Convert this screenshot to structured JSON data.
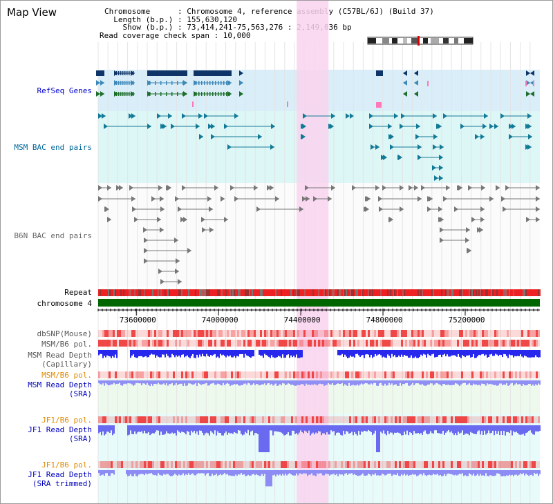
{
  "page": {
    "title": "Map View",
    "info": {
      "chromosome": "Chromosome      : Chromosome 4, reference assembly (C57BL/6J) (Build 37)",
      "length": "  Length (b.p.) : 155,630,120",
      "show": "    Show (b.p.) : 73,414,241-75,563,276 : 2,149,036 bp",
      "coverage": "Read coverage check span : 10,000"
    }
  },
  "tracks": {
    "refseq": {
      "label": "RefSeq Genes",
      "color": "#0000cc"
    },
    "msm_bac": {
      "label": "MSM BAC end pairs",
      "color": "#006699"
    },
    "b6n_bac": {
      "label": "B6N BAC end pairs",
      "color": "#666666"
    },
    "repeat": {
      "label": "Repeat"
    },
    "chromosome": {
      "label": "chromosome 4"
    },
    "dbsnp": {
      "label": "dbSNP(Mouse)"
    },
    "msm_b6_pol": {
      "label": "MSM/B6 pol."
    },
    "msm_depth_cap": {
      "label": "MSM Read Depth",
      "label2": "(Capillary)"
    },
    "msm_b6_pol2": {
      "label": "MSM/B6 pol."
    },
    "msm_depth_sra": {
      "label": "MSM Read Depth",
      "label2": "(SRA)"
    },
    "jf1_b6_pol": {
      "label": "JF1/B6 pol."
    },
    "jf1_depth_sra": {
      "label": "JF1 Read Depth",
      "label2": "(SRA)"
    },
    "jf1_b6_pol2": {
      "label": "JF1/B6 pol."
    },
    "jf1_depth_trim": {
      "label": "JF1 Read Depth",
      "label2": "(SRA trimmed)"
    }
  },
  "ruler": {
    "ticks": [
      {
        "label": "73600000",
        "pos": 73600000
      },
      {
        "label": "74000000",
        "pos": 74000000
      },
      {
        "label": "74400000",
        "pos": 74400000
      },
      {
        "label": "74800000",
        "pos": 74800000
      },
      {
        "label": "75200000",
        "pos": 75200000
      }
    ]
  },
  "highlight": {
    "start_bp": 74380000,
    "end_bp": 74535000
  },
  "view": {
    "start_bp": 73414241,
    "end_bp": 75563276
  },
  "colors": {
    "refseq_bg": "#d9eef9",
    "msm_bg": "#ddf6f6",
    "gene_dark": "#0e3468",
    "gene_blue": "#3e88b8",
    "gene_green": "#1d6e2a",
    "highlight": "#f9d3ef",
    "chromosome": "#006600",
    "depth_blue": "#2727ee",
    "depth_light": "#8f8ff4",
    "pol_red": "#ee3333",
    "label_orange": "#e08a00",
    "label_blue": "#0000bb"
  }
}
